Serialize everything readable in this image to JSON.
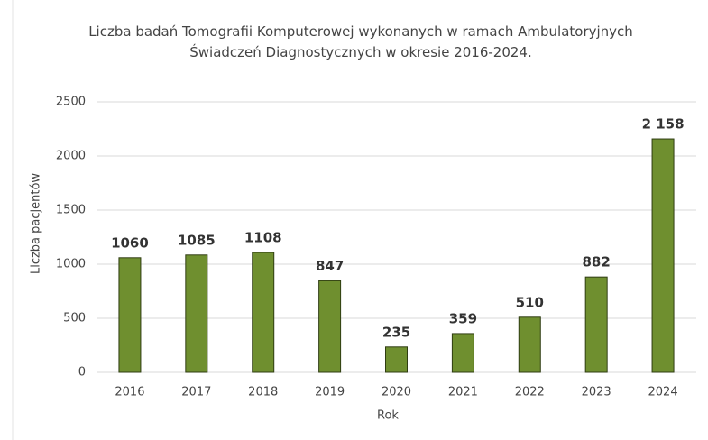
{
  "chart_data": {
    "type": "bar",
    "title": "Liczba badań Tomografii Komputerowej wykonanych w ramach Ambulatoryjnych Świadczeń Diagnostycznych w okresie 2016-2024.",
    "x_label": "Rok",
    "y_label": "Liczba pacjentów",
    "categories": [
      "2016",
      "2017",
      "2018",
      "2019",
      "2020",
      "2021",
      "2022",
      "2023",
      "2024"
    ],
    "values": [
      1060,
      1085,
      1108,
      847,
      235,
      359,
      510,
      882,
      2158
    ],
    "value_labels": [
      "1060",
      "1085",
      "1108",
      "847",
      "235",
      "359",
      "510",
      "882",
      "2 158"
    ],
    "color": "#6f8f2f",
    "ylim": [
      0,
      2500
    ],
    "yticks": [
      0,
      500,
      1000,
      1500,
      2000,
      2500
    ],
    "grid": true
  }
}
